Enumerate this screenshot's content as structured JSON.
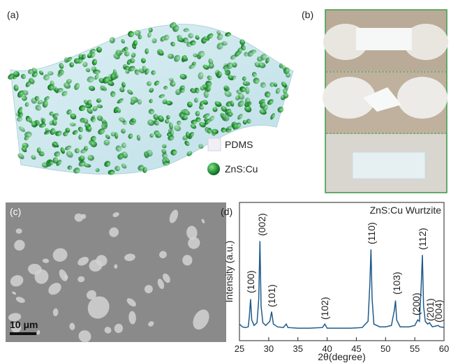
{
  "panels": {
    "a": "(a)",
    "b": "(b)",
    "c": "(c)",
    "d": "(d)"
  },
  "legend": {
    "pdms": "PDMS",
    "particles": "ZnS:Cu"
  },
  "scale_bar": "10 μm",
  "chart_data": {
    "type": "line",
    "annotation": "ZnS:Cu Wurtzite",
    "xlabel": "2θ(degree)",
    "ylabel": "Intensity (a.u.)",
    "peak_labels": [
      "(100)",
      "(002)",
      "(101)",
      "(102)",
      "(110)",
      "(103)",
      "(200)",
      "(112)",
      "(201)",
      "(004)"
    ],
    "xlim": [
      25,
      60
    ],
    "xticks": [
      25,
      30,
      35,
      40,
      45,
      50,
      55,
      60
    ],
    "ylim": [
      0,
      100
    ],
    "series": [
      {
        "color": "#1f5a8a",
        "x": [
          25,
          25.5,
          26,
          26.5,
          26.7,
          26.9,
          27.1,
          27.5,
          28,
          28.3,
          28.5,
          28.7,
          29,
          29.5,
          30.2,
          30.5,
          30.8,
          31.5,
          32.5,
          33,
          33.3,
          35,
          37,
          39.2,
          39.6,
          40,
          42,
          44,
          46,
          47,
          47.3,
          47.5,
          47.7,
          48,
          49,
          50,
          51,
          51.5,
          51.7,
          51.9,
          52.5,
          54,
          55,
          55.5,
          55.8,
          56.1,
          56.3,
          56.5,
          56.8,
          57.2,
          57.5,
          58,
          59,
          59.3,
          60
        ],
        "values": [
          12,
          10,
          9.5,
          10,
          18,
          30,
          15,
          11,
          13,
          30,
          72,
          25,
          13,
          11,
          14,
          21,
          12,
          10,
          9.5,
          12,
          9.5,
          9,
          9,
          9.5,
          12,
          9,
          9,
          9,
          9.5,
          14,
          40,
          66,
          30,
          12,
          10,
          10,
          11,
          22,
          29,
          15,
          10,
          10,
          11,
          15,
          14,
          40,
          62,
          25,
          14,
          12,
          13,
          10,
          11,
          10,
          9.5
        ]
      }
    ]
  }
}
